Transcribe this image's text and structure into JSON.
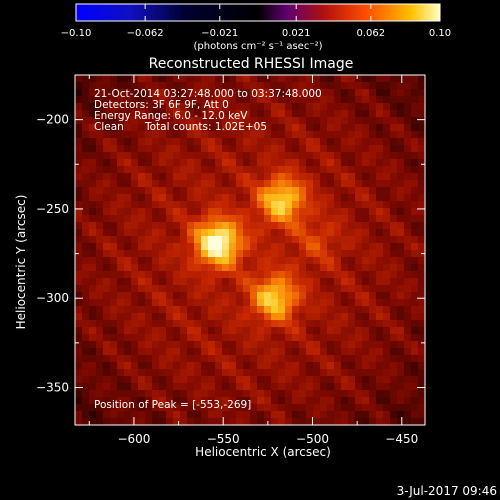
{
  "chart_data": {
    "type": "heatmap",
    "title": "Reconstructed RHESSI Image",
    "xlabel": "Heliocentric X (arcsec)",
    "ylabel": "Heliocentric Y (arcsec)",
    "xlim": [
      -633,
      -437
    ],
    "ylim": [
      -371,
      -175
    ],
    "x_ticks": [
      -600,
      -550,
      -500,
      -450
    ],
    "y_ticks": [
      -200,
      -250,
      -300,
      -350
    ],
    "x_tick_labels": [
      "−600",
      "−550",
      "−500",
      "−450"
    ],
    "y_tick_labels": [
      "−200",
      "−250",
      "−300",
      "−350"
    ],
    "colorbar": {
      "range": [
        -0.1,
        0.1
      ],
      "tick_labels": [
        "−0.10",
        "−0.062",
        "−0.021",
        "0.021",
        "0.062",
        "0.10"
      ],
      "units_label": "(photons cm⁻² s⁻¹ asec⁻²)"
    },
    "annotations": {
      "time_range": "21-Oct-2014 03:27:48.000 to 03:37:48.000",
      "detectors": "Detectors: 3F 6F 9F, Att 0",
      "energy": "Energy Range: 6.0 - 12.0 keV",
      "method": "Clean",
      "counts": "Total counts: 1.02E+05",
      "peak": "Position of Peak = [-553,-269]"
    },
    "sources": [
      {
        "x": -553,
        "y": -269,
        "peak": 1.0
      },
      {
        "x": -517,
        "y": -245,
        "peak": 0.75
      },
      {
        "x": -521,
        "y": -300,
        "peak": 0.72
      },
      {
        "x": -497,
        "y": -268,
        "peak": 0.22
      }
    ],
    "background_level": 0.32
  },
  "footer": {
    "date": "3-Jul-2017 09:46"
  }
}
